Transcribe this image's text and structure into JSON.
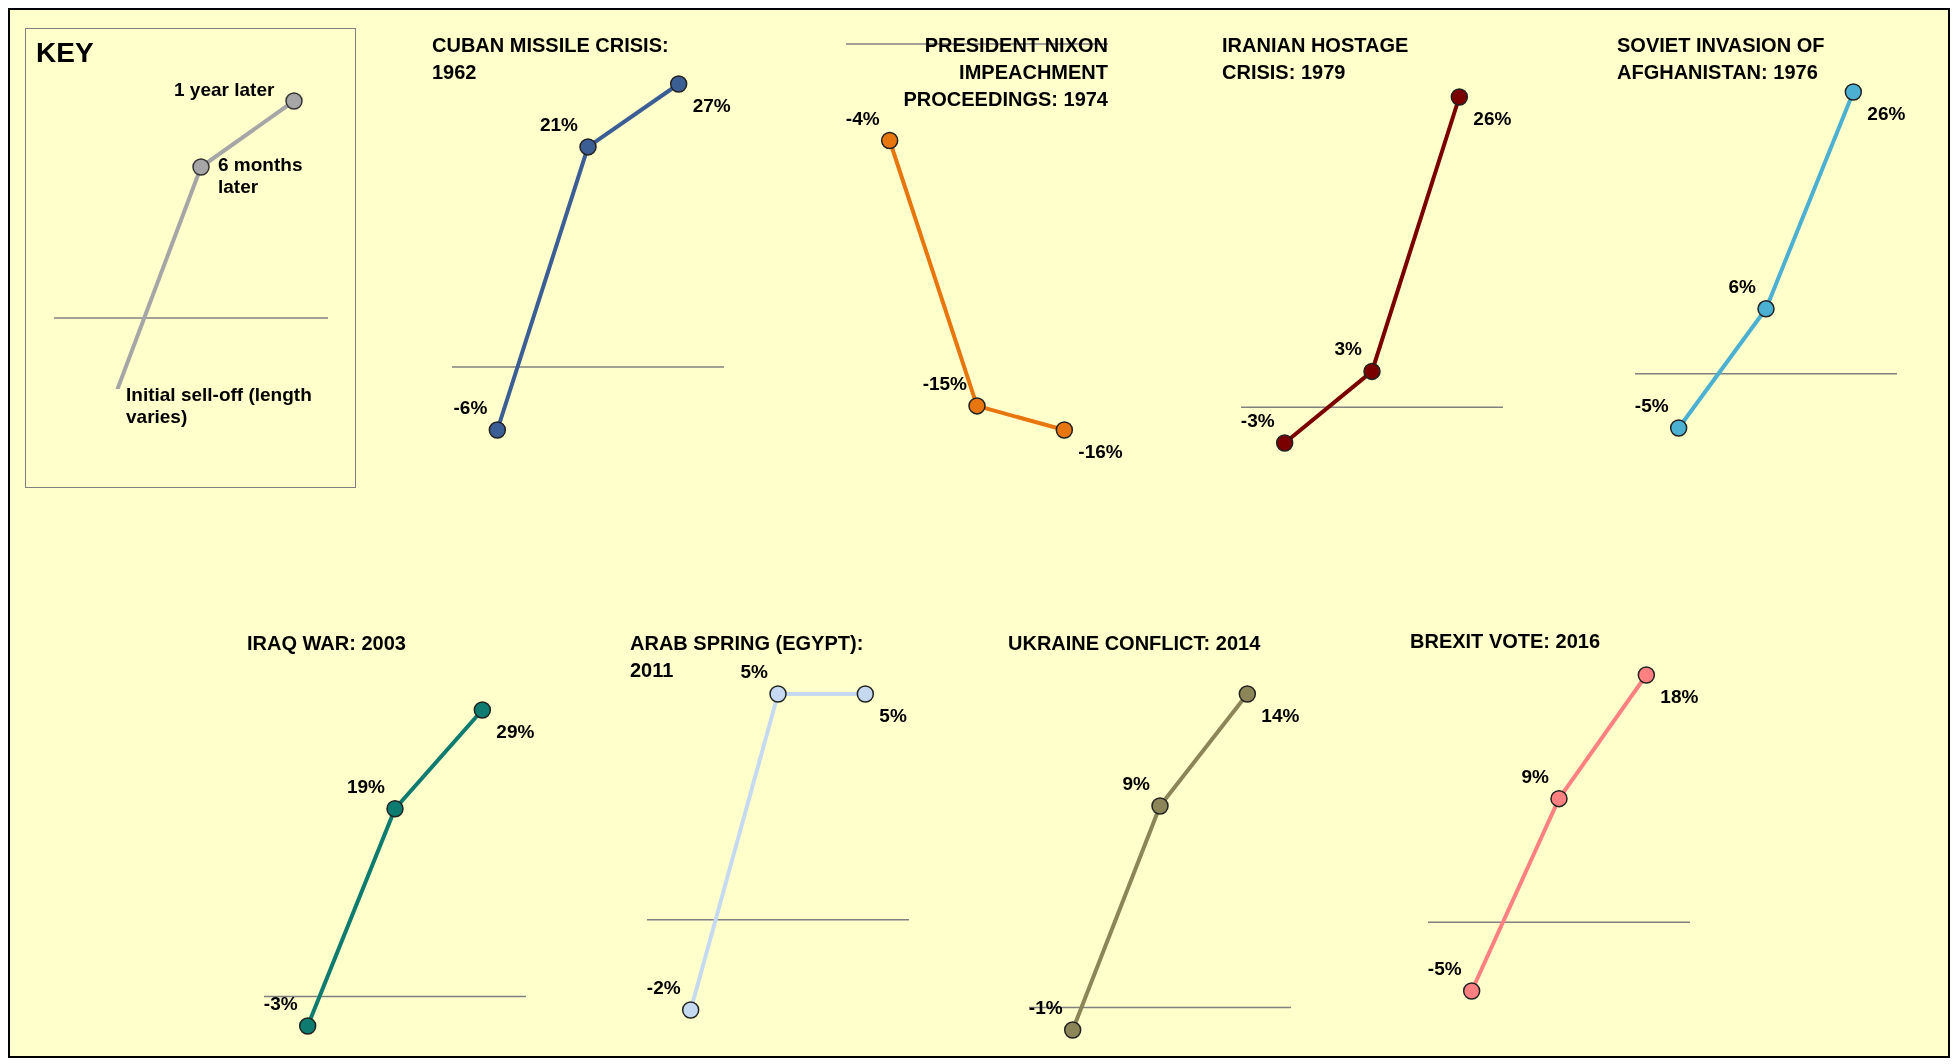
{
  "chart_data": [
    {
      "type": "other",
      "title": "KEY",
      "annotations": [
        "1 year later",
        "6 months later",
        "Initial sell-off (length varies)"
      ]
    },
    {
      "type": "line",
      "title": "CUBAN MISSILE CRISIS: 1962",
      "categories": [
        null,
        null,
        null
      ],
      "tick_labels": false,
      "series": [
        {
          "color": "#3b5e95",
          "values": [
            -6,
            21,
            27
          ],
          "value_labels": [
            "-6%",
            "21%",
            "27%"
          ]
        }
      ],
      "ref_lines": [
        {
          "axis": "y",
          "value": 0,
          "color": "#808080"
        }
      ],
      "marker": "circle"
    },
    {
      "type": "line",
      "title": "PRESIDENT NIXON IMPEACHMENT PROCEEDINGS: 1974",
      "categories": [
        null,
        null,
        null
      ],
      "tick_labels": false,
      "series": [
        {
          "color": "#e8760f",
          "values": [
            -4,
            -15,
            -16
          ],
          "value_labels": [
            "-4%",
            "-15%",
            "-16%"
          ]
        }
      ],
      "ref_lines": [
        {
          "axis": "y",
          "value": 0,
          "color": "#808080"
        }
      ],
      "marker": "circle"
    },
    {
      "type": "line",
      "title": "IRANIAN HOSTAGE CRISIS: 1979",
      "categories": [
        null,
        null,
        null
      ],
      "tick_labels": false,
      "series": [
        {
          "color": "#7a0000",
          "values": [
            -3,
            3,
            26
          ],
          "value_labels": [
            "-3%",
            "3%",
            "26%"
          ]
        }
      ],
      "ref_lines": [
        {
          "axis": "y",
          "value": 0,
          "color": "#808080"
        }
      ],
      "marker": "circle"
    },
    {
      "type": "line",
      "title": "SOVIET INVASION OF AFGHANISTAN: 1976",
      "categories": [
        null,
        null,
        null
      ],
      "tick_labels": false,
      "series": [
        {
          "color": "#4bb0d2",
          "values": [
            -5,
            6,
            26
          ],
          "value_labels": [
            "-5%",
            "6%",
            "26%"
          ]
        }
      ],
      "ref_lines": [
        {
          "axis": "y",
          "value": 0,
          "color": "#808080"
        }
      ],
      "marker": "circle"
    },
    {
      "type": "line",
      "title": "IRAQ WAR: 2003",
      "categories": [
        null,
        null,
        null
      ],
      "tick_labels": false,
      "series": [
        {
          "color": "#0e7b70",
          "values": [
            -3,
            19,
            29
          ],
          "value_labels": [
            "-3%",
            "19%",
            "29%"
          ]
        }
      ],
      "ref_lines": [
        {
          "axis": "y",
          "value": 0,
          "color": "#808080"
        }
      ],
      "marker": "circle"
    },
    {
      "type": "line",
      "title": "ARAB SPRING (EGYPT): 2011",
      "categories": [
        null,
        null,
        null
      ],
      "tick_labels": false,
      "series": [
        {
          "color": "#c5daf0",
          "values": [
            -2,
            5,
            5
          ],
          "value_labels": [
            "-2%",
            "5%",
            "5%"
          ]
        }
      ],
      "ref_lines": [
        {
          "axis": "y",
          "value": 0,
          "color": "#808080"
        }
      ],
      "marker": "circle"
    },
    {
      "type": "line",
      "title": "UKRAINE CONFLICT: 2014",
      "categories": [
        null,
        null,
        null
      ],
      "tick_labels": false,
      "series": [
        {
          "color": "#8c8557",
          "values": [
            -1,
            9,
            14
          ],
          "value_labels": [
            "-1%",
            "9%",
            "14%"
          ]
        }
      ],
      "ref_lines": [
        {
          "axis": "y",
          "value": 0,
          "color": "#808080"
        }
      ],
      "marker": "circle"
    },
    {
      "type": "line",
      "title": "BREXIT VOTE: 2016",
      "categories": [
        null,
        null,
        null
      ],
      "tick_labels": false,
      "series": [
        {
          "color": "#ff8080",
          "values": [
            -5,
            9,
            18
          ],
          "value_labels": [
            "-5%",
            "9%",
            "18%"
          ]
        }
      ],
      "ref_lines": [
        {
          "axis": "y",
          "value": 0,
          "color": "#808080"
        }
      ],
      "marker": "circle"
    }
  ]
}
